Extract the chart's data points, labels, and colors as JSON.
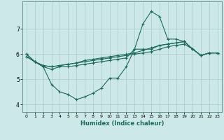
{
  "xlabel": "Humidex (Indice chaleur)",
  "background_color": "#cce8e8",
  "line_color": "#1a6b5a",
  "grid_color": "#aacccc",
  "xlim": [
    -0.5,
    23.5
  ],
  "ylim": [
    3.7,
    8.1
  ],
  "xticks": [
    0,
    1,
    2,
    3,
    4,
    5,
    6,
    7,
    8,
    9,
    10,
    11,
    12,
    13,
    14,
    15,
    16,
    17,
    18,
    19,
    20,
    21,
    22,
    23
  ],
  "yticks": [
    4,
    5,
    6,
    7
  ],
  "series": [
    {
      "x": [
        0,
        1,
        2,
        3,
        4,
        5,
        6,
        7,
        8,
        9,
        10,
        11,
        12,
        13,
        14,
        15,
        16,
        17,
        18,
        19,
        20,
        21,
        22,
        23
      ],
      "y": [
        6.0,
        5.7,
        5.5,
        5.4,
        5.5,
        5.5,
        5.55,
        5.6,
        5.65,
        5.7,
        5.75,
        5.8,
        5.85,
        6.2,
        7.2,
        7.7,
        7.5,
        6.6,
        6.6,
        6.5,
        6.2,
        5.95,
        6.05,
        6.05
      ]
    },
    {
      "x": [
        0,
        1,
        2,
        3,
        4,
        5,
        6,
        7,
        8,
        9,
        10,
        11,
        12,
        13,
        14,
        15,
        16,
        17,
        18,
        19,
        20,
        21,
        22,
        23
      ],
      "y": [
        5.9,
        5.7,
        5.55,
        5.5,
        5.55,
        5.6,
        5.65,
        5.75,
        5.8,
        5.85,
        5.9,
        5.95,
        6.0,
        6.05,
        6.15,
        6.25,
        6.35,
        6.4,
        6.45,
        6.5,
        6.2,
        5.95,
        6.05,
        6.05
      ]
    },
    {
      "x": [
        0,
        1,
        2,
        3,
        4,
        5,
        6,
        7,
        8,
        9,
        10,
        11,
        12,
        13,
        14,
        15,
        16,
        17,
        18,
        19,
        20,
        21,
        22,
        23
      ],
      "y": [
        5.9,
        5.7,
        5.55,
        5.5,
        5.55,
        5.6,
        5.65,
        5.7,
        5.75,
        5.8,
        5.85,
        5.9,
        5.95,
        6.0,
        6.05,
        6.1,
        6.2,
        6.3,
        6.35,
        6.4,
        6.2,
        5.95,
        6.05,
        6.05
      ]
    },
    {
      "x": [
        0,
        1,
        2,
        3,
        4,
        5,
        6,
        7,
        8,
        9,
        10,
        11,
        12,
        13,
        14,
        15,
        16,
        17,
        18,
        19,
        20,
        21,
        22,
        23
      ],
      "y": [
        6.0,
        5.7,
        5.5,
        4.8,
        4.5,
        4.4,
        4.2,
        4.3,
        4.45,
        4.65,
        5.05,
        5.05,
        5.5,
        6.2,
        6.2,
        6.2,
        6.35,
        6.4,
        6.45,
        6.5,
        6.2,
        5.95,
        6.05,
        6.05
      ]
    }
  ]
}
